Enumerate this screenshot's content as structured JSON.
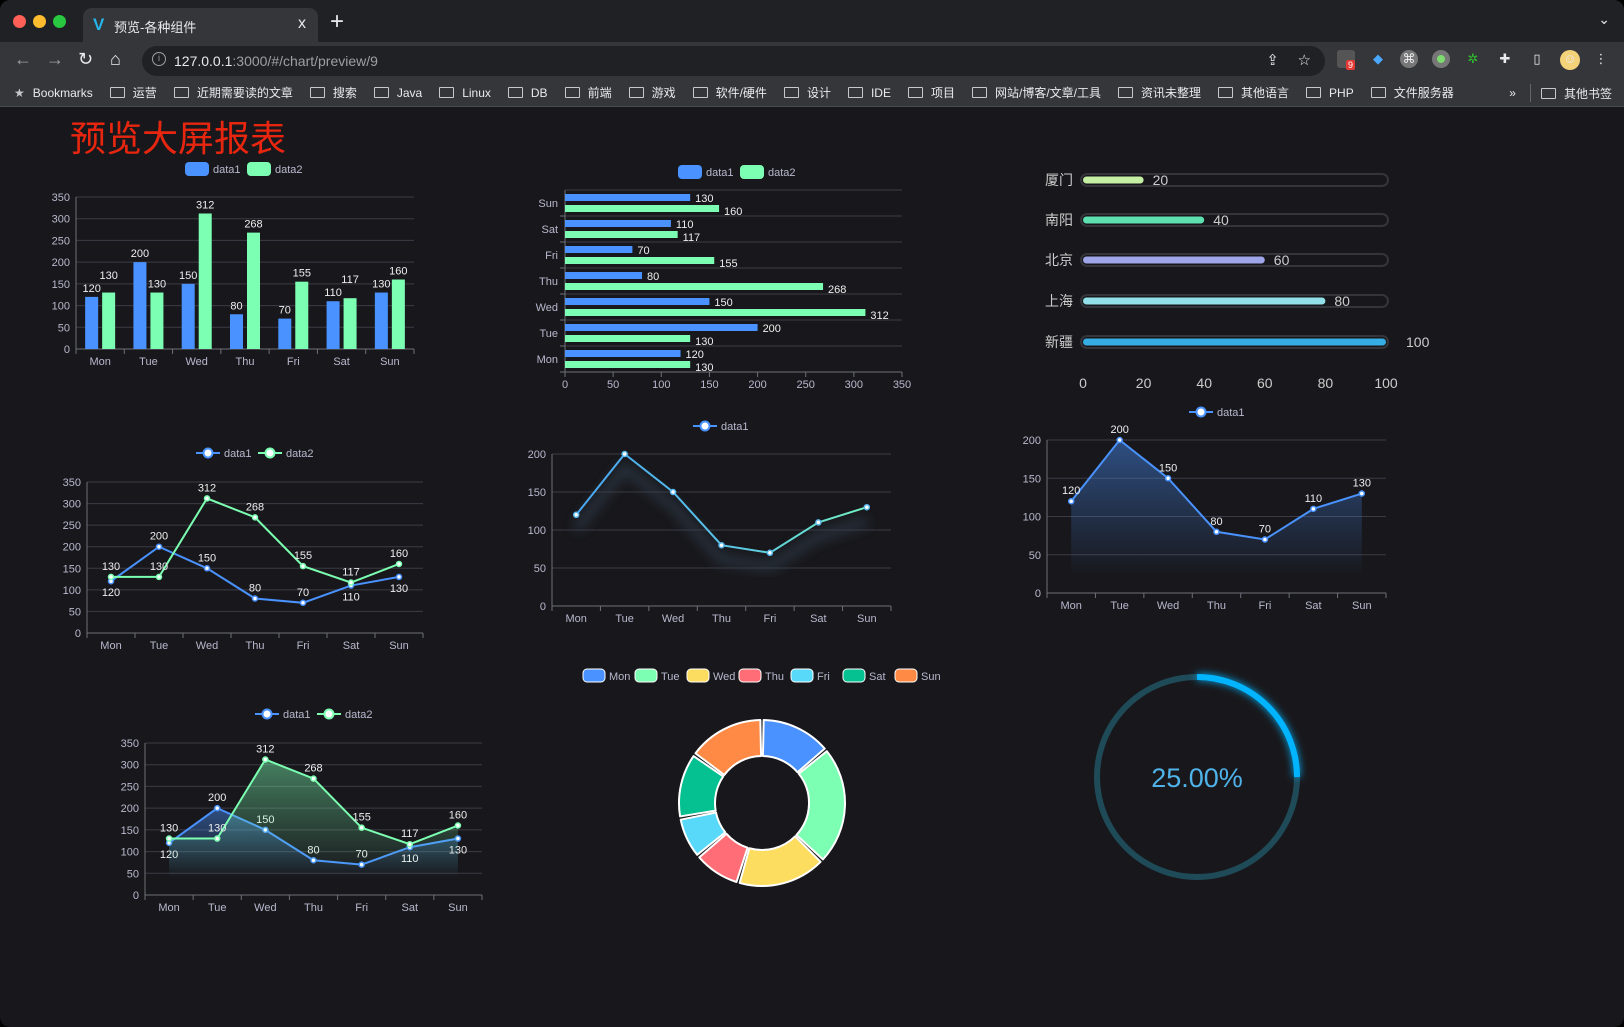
{
  "browser": {
    "tab_title": "预览-各种组件",
    "tab_close": "x",
    "new_tab": "+",
    "url_host": "127.0.0.1",
    "url_rest": ":3000/#/chart/preview/9",
    "extension_badge": "9",
    "bookmarks_label": "Bookmarks",
    "bookmarks": [
      "运营",
      "近期需要读的文章",
      "搜索",
      "Java",
      "Linux",
      "DB",
      "前端",
      "游戏",
      "软件/硬件",
      "设计",
      "IDE",
      "项目",
      "网站/博客/文章/工具",
      "资讯未整理",
      "其他语言",
      "PHP",
      "文件服务器"
    ],
    "overflow": "»",
    "other_bookmarks": "其他书签"
  },
  "page": {
    "title": "预览大屏报表",
    "title_color": "#e8260f"
  },
  "colors": {
    "data1": "#4992ff",
    "data2": "#7cffb2",
    "axis_text": "#b9b8ce",
    "grid": "#3c3b45"
  },
  "chart_data": [
    {
      "type": "bar",
      "legend": [
        "data1",
        "data2"
      ],
      "categories": [
        "Mon",
        "Tue",
        "Wed",
        "Thu",
        "Fri",
        "Sat",
        "Sun"
      ],
      "series": [
        {
          "name": "data1",
          "values": [
            120,
            200,
            150,
            80,
            70,
            110,
            130
          ]
        },
        {
          "name": "data2",
          "values": [
            130,
            130,
            312,
            268,
            155,
            117,
            160
          ]
        }
      ],
      "ylim": [
        0,
        350
      ],
      "yticks": [
        0,
        50,
        100,
        150,
        200,
        250,
        300,
        350
      ],
      "data_labels": true,
      "grid": true,
      "legend_position": "top"
    },
    {
      "type": "bar",
      "orientation": "horizontal",
      "legend": [
        "data1",
        "data2"
      ],
      "categories": [
        "Mon",
        "Tue",
        "Wed",
        "Thu",
        "Fri",
        "Sat",
        "Sun"
      ],
      "series": [
        {
          "name": "data1",
          "values": [
            120,
            200,
            150,
            80,
            70,
            110,
            130
          ]
        },
        {
          "name": "data2",
          "values": [
            130,
            130,
            312,
            268,
            155,
            117,
            160
          ]
        }
      ],
      "xlim": [
        0,
        350
      ],
      "xticks": [
        0,
        50,
        100,
        150,
        200,
        250,
        300,
        350
      ],
      "data_labels": true,
      "grid": true,
      "legend_position": "top"
    },
    {
      "type": "bar",
      "orientation": "horizontal",
      "style": "progress",
      "categories": [
        "厦门",
        "南阳",
        "北京",
        "上海",
        "新疆"
      ],
      "values": [
        20,
        40,
        60,
        80,
        100
      ],
      "xlim": [
        0,
        100
      ],
      "xticks": [
        0,
        20,
        40,
        60,
        80,
        100
      ],
      "colors": [
        "#c5f0a4",
        "#5fe0b0",
        "#9ea5e8",
        "#93e1e8",
        "#37aee3"
      ]
    },
    {
      "type": "line",
      "legend": [
        "data1",
        "data2"
      ],
      "categories": [
        "Mon",
        "Tue",
        "Wed",
        "Thu",
        "Fri",
        "Sat",
        "Sun"
      ],
      "series": [
        {
          "name": "data1",
          "values": [
            120,
            200,
            150,
            80,
            70,
            110,
            130
          ]
        },
        {
          "name": "data2",
          "values": [
            130,
            130,
            312,
            268,
            155,
            117,
            160
          ]
        }
      ],
      "ylim": [
        0,
        350
      ],
      "yticks": [
        0,
        50,
        100,
        150,
        200,
        250,
        300,
        350
      ],
      "data_labels": true,
      "grid": true,
      "legend_position": "top"
    },
    {
      "type": "line",
      "legend": [
        "data1"
      ],
      "categories": [
        "Mon",
        "Tue",
        "Wed",
        "Thu",
        "Fri",
        "Sat",
        "Sun"
      ],
      "series": [
        {
          "name": "data1",
          "values": [
            120,
            200,
            150,
            80,
            70,
            110,
            130
          ]
        }
      ],
      "ylim": [
        0,
        200
      ],
      "yticks": [
        0,
        50,
        100,
        150,
        200
      ],
      "data_labels": false,
      "shadow": true,
      "grid": true,
      "legend_position": "top"
    },
    {
      "type": "area",
      "legend": [
        "data1"
      ],
      "categories": [
        "Mon",
        "Tue",
        "Wed",
        "Thu",
        "Fri",
        "Sat",
        "Sun"
      ],
      "series": [
        {
          "name": "data1",
          "values": [
            120,
            200,
            150,
            80,
            70,
            110,
            130
          ]
        }
      ],
      "ylim": [
        0,
        200
      ],
      "yticks": [
        0,
        50,
        100,
        150,
        200
      ],
      "data_labels": true,
      "grid": true,
      "legend_position": "top"
    },
    {
      "type": "area",
      "legend": [
        "data1",
        "data2"
      ],
      "categories": [
        "Mon",
        "Tue",
        "Wed",
        "Thu",
        "Fri",
        "Sat",
        "Sun"
      ],
      "series": [
        {
          "name": "data1",
          "values": [
            120,
            200,
            150,
            80,
            70,
            110,
            130
          ]
        },
        {
          "name": "data2",
          "values": [
            130,
            130,
            312,
            268,
            155,
            117,
            160
          ]
        }
      ],
      "ylim": [
        0,
        350
      ],
      "yticks": [
        0,
        50,
        100,
        150,
        200,
        250,
        300,
        350
      ],
      "data_labels": true,
      "grid": true,
      "legend_position": "top"
    },
    {
      "type": "pie",
      "style": "donut",
      "categories": [
        "Mon",
        "Tue",
        "Wed",
        "Thu",
        "Fri",
        "Sat",
        "Sun"
      ],
      "values": [
        120,
        200,
        150,
        80,
        70,
        110,
        130
      ],
      "colors": [
        "#4992ff",
        "#7cffb2",
        "#fddd60",
        "#ff6e76",
        "#58d9f9",
        "#05c091",
        "#ff8a45"
      ],
      "legend_position": "top"
    },
    {
      "type": "gauge",
      "value": 0.25,
      "label": "25.00%",
      "color": "#00b4ff",
      "track_color": "#1f4a58"
    }
  ]
}
